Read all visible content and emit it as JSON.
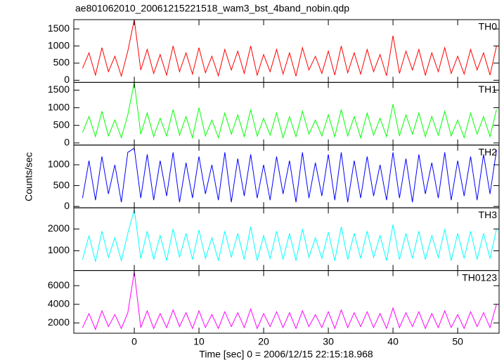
{
  "chart_data": [
    {
      "type": "line",
      "title": "ae801062010_20061215221518_wam3_bst_4band_nobin.qdp",
      "xlim": [
        -9.35,
        56.4
      ],
      "xticks": [
        0,
        10,
        20,
        30,
        40,
        50
      ],
      "ylim": [
        -62,
        1770
      ],
      "yticks": [
        0,
        500,
        1000,
        1500
      ],
      "x": [
        -8,
        -7,
        -6,
        -5,
        -4,
        -3,
        -2,
        -1,
        0,
        1,
        2,
        3,
        4,
        5,
        6,
        7,
        8,
        9,
        10,
        11,
        12,
        13,
        14,
        15,
        16,
        17,
        18,
        19,
        20,
        21,
        22,
        23,
        24,
        25,
        26,
        27,
        28,
        29,
        30,
        31,
        32,
        33,
        34,
        35,
        36,
        37,
        38,
        39,
        40,
        41,
        42,
        43,
        44,
        45,
        46,
        47,
        48,
        49,
        50,
        51,
        52,
        53,
        54,
        55,
        56
      ],
      "series": [
        {
          "name": "TH0",
          "color": "#ff0000",
          "values": [
            350,
            800,
            150,
            950,
            250,
            700,
            120,
            850,
            1770,
            300,
            900,
            200,
            750,
            150,
            1000,
            250,
            800,
            180,
            950,
            220,
            700,
            130,
            900,
            300,
            850,
            200,
            1000,
            150,
            750,
            250,
            900,
            180,
            800,
            120,
            950,
            300,
            700,
            200,
            850,
            150,
            1000,
            220,
            800,
            180,
            900,
            250,
            750,
            130,
            1300,
            200,
            850,
            300,
            900,
            150,
            800,
            250,
            950,
            200,
            700,
            180,
            900,
            300,
            800,
            150,
            1000
          ]
        }
      ]
    },
    {
      "type": "line",
      "xlim": [
        -9.35,
        56.4
      ],
      "xticks": [
        0,
        10,
        20,
        30,
        40,
        50
      ],
      "ylim": [
        -60,
        1720
      ],
      "yticks": [
        0,
        500,
        1000,
        1500
      ],
      "x": [
        -8,
        -7,
        -6,
        -5,
        -4,
        -3,
        -2,
        -1,
        0,
        1,
        2,
        3,
        4,
        5,
        6,
        7,
        8,
        9,
        10,
        11,
        12,
        13,
        14,
        15,
        16,
        17,
        18,
        19,
        20,
        21,
        22,
        23,
        24,
        25,
        26,
        27,
        28,
        29,
        30,
        31,
        32,
        33,
        34,
        35,
        36,
        37,
        38,
        39,
        40,
        41,
        42,
        43,
        44,
        45,
        46,
        47,
        48,
        49,
        50,
        51,
        52,
        53,
        54,
        55,
        56
      ],
      "series": [
        {
          "name": "TH1",
          "color": "#00ff00",
          "values": [
            300,
            750,
            180,
            900,
            200,
            650,
            150,
            800,
            1720,
            250,
            850,
            180,
            700,
            200,
            950,
            220,
            750,
            150,
            1000,
            200,
            650,
            150,
            850,
            250,
            800,
            180,
            950,
            200,
            700,
            220,
            850,
            150,
            750,
            180,
            900,
            250,
            650,
            200,
            800,
            180,
            950,
            200,
            750,
            150,
            850,
            220,
            700,
            180,
            1100,
            200,
            800,
            250,
            850,
            180,
            750,
            220,
            900,
            200,
            650,
            150,
            850,
            250,
            750,
            180,
            950
          ]
        }
      ]
    },
    {
      "type": "line",
      "ylabel": "Counts/sec",
      "xlim": [
        -9.35,
        56.4
      ],
      "xticks": [
        0,
        10,
        20,
        30,
        40,
        50
      ],
      "ylim": [
        -34,
        1475
      ],
      "yticks": [
        0,
        500,
        1000
      ],
      "x": [
        -8,
        -7,
        -6,
        -5,
        -4,
        -3,
        -2,
        -1,
        0,
        1,
        2,
        3,
        4,
        5,
        6,
        7,
        8,
        9,
        10,
        11,
        12,
        13,
        14,
        15,
        16,
        17,
        18,
        19,
        20,
        21,
        22,
        23,
        24,
        25,
        26,
        27,
        28,
        29,
        30,
        31,
        32,
        33,
        34,
        35,
        36,
        37,
        38,
        39,
        40,
        41,
        42,
        43,
        44,
        45,
        46,
        47,
        48,
        49,
        50,
        51,
        52,
        53,
        54,
        55,
        56
      ],
      "series": [
        {
          "name": "TH2",
          "color": "#0000ff",
          "values": [
            200,
            1100,
            150,
            1200,
            300,
            1000,
            100,
            1300,
            1400,
            200,
            1250,
            150,
            1100,
            250,
            1300,
            100,
            1050,
            200,
            1200,
            300,
            1000,
            150,
            1300,
            100,
            1150,
            250,
            1250,
            200,
            1000,
            150,
            1200,
            300,
            1100,
            100,
            1300,
            200,
            1050,
            250,
            1250,
            150,
            1300,
            100,
            1100,
            200,
            1200,
            250,
            1000,
            150,
            1300,
            200,
            1150,
            100,
            1250,
            300,
            1050,
            200,
            1300,
            150,
            1100,
            250,
            1200,
            150,
            1250,
            300,
            1350
          ]
        }
      ]
    },
    {
      "type": "line",
      "xlim": [
        -9.35,
        56.4
      ],
      "xticks": [
        0,
        10,
        20,
        30,
        40,
        50
      ],
      "ylim": [
        97,
        2970
      ],
      "yticks": [
        1000,
        2000
      ],
      "x": [
        -8,
        -7,
        -6,
        -5,
        -4,
        -3,
        -2,
        -1,
        0,
        1,
        2,
        3,
        4,
        5,
        6,
        7,
        8,
        9,
        10,
        11,
        12,
        13,
        14,
        15,
        16,
        17,
        18,
        19,
        20,
        21,
        22,
        23,
        24,
        25,
        26,
        27,
        28,
        29,
        30,
        31,
        32,
        33,
        34,
        35,
        36,
        37,
        38,
        39,
        40,
        41,
        42,
        43,
        44,
        45,
        46,
        47,
        48,
        49,
        50,
        51,
        52,
        53,
        54,
        55,
        56
      ],
      "series": [
        {
          "name": "TH3",
          "color": "#00ffff",
          "values": [
            600,
            1700,
            500,
            1900,
            700,
            1600,
            550,
            1800,
            2900,
            650,
            1900,
            600,
            1700,
            550,
            2000,
            700,
            1800,
            600,
            1950,
            650,
            1600,
            550,
            1900,
            700,
            1800,
            600,
            2100,
            550,
            1700,
            650,
            1900,
            600,
            1800,
            550,
            2000,
            700,
            1600,
            650,
            1850,
            550,
            2100,
            600,
            1800,
            650,
            1900,
            700,
            1700,
            550,
            2200,
            600,
            1800,
            650,
            1900,
            600,
            1700,
            700,
            2000,
            550,
            1800,
            650,
            1900,
            600,
            1800,
            650,
            2000
          ]
        }
      ]
    },
    {
      "type": "line",
      "xlabel": "Time [sec] 0 = 2006/12/15 22:15:18.968",
      "xlim": [
        -9.35,
        56.4
      ],
      "xticks": [
        0,
        10,
        20,
        30,
        40,
        50
      ],
      "ylim": [
        890,
        7630
      ],
      "yticks": [
        2000,
        4000,
        6000
      ],
      "x": [
        -8,
        -7,
        -6,
        -5,
        -4,
        -3,
        -2,
        -1,
        0,
        1,
        2,
        3,
        4,
        5,
        6,
        7,
        8,
        9,
        10,
        11,
        12,
        13,
        14,
        15,
        16,
        17,
        18,
        19,
        20,
        21,
        22,
        23,
        24,
        25,
        26,
        27,
        28,
        29,
        30,
        31,
        32,
        33,
        34,
        35,
        36,
        37,
        38,
        39,
        40,
        41,
        42,
        43,
        44,
        45,
        46,
        47,
        48,
        49,
        50,
        51,
        52,
        53,
        54,
        55,
        56
      ],
      "series": [
        {
          "name": "TH0123",
          "color": "#ff00ff",
          "values": [
            1500,
            3000,
            1300,
            3300,
            1600,
            2900,
            1400,
            3100,
            7500,
            1500,
            3300,
            1400,
            3000,
            1500,
            3400,
            1600,
            3100,
            1400,
            3300,
            1500,
            2900,
            1400,
            3200,
            1600,
            3100,
            1500,
            3500,
            1400,
            3000,
            1600,
            3200,
            1500,
            3100,
            1400,
            3300,
            1600,
            2900,
            1500,
            3200,
            1400,
            3400,
            1500,
            3100,
            1600,
            3200,
            1500,
            3000,
            1400,
            3600,
            1500,
            3100,
            1600,
            3200,
            1400,
            3000,
            1500,
            3300,
            1500,
            2900,
            1400,
            3200,
            1600,
            3100,
            1500,
            4000
          ]
        }
      ]
    }
  ]
}
